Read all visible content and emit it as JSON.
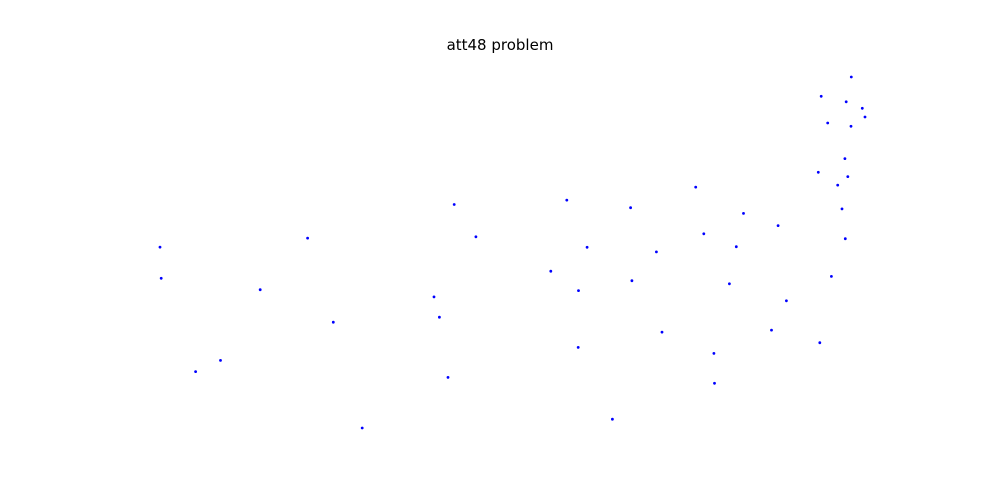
{
  "chart_data": {
    "type": "scatter",
    "title": "att48 problem",
    "xlabel": "",
    "ylabel": "",
    "axes_visible": false,
    "grid": false,
    "legend": "none",
    "marker_color": "#0000ff",
    "xlim": [
      0,
      8000
    ],
    "ylim": [
      0,
      5000
    ],
    "points": [
      {
        "x": 6734,
        "y": 1453
      },
      {
        "x": 2233,
        "y": 10
      },
      {
        "x": 5530,
        "y": 1424
      },
      {
        "x": 401,
        "y": 841
      },
      {
        "x": 3082,
        "y": 1644
      },
      {
        "x": 7608,
        "y": 4458
      },
      {
        "x": 7573,
        "y": 3716
      },
      {
        "x": 7265,
        "y": 1268
      },
      {
        "x": 6898,
        "y": 1885
      },
      {
        "x": 1112,
        "y": 2049
      },
      {
        "x": 5468,
        "y": 2606
      },
      {
        "x": 5989,
        "y": 2873
      },
      {
        "x": 4706,
        "y": 2674
      },
      {
        "x": 4612,
        "y": 2035
      },
      {
        "x": 6347,
        "y": 2683
      },
      {
        "x": 6107,
        "y": 669
      },
      {
        "x": 7611,
        "y": 5184
      },
      {
        "x": 7462,
        "y": 3590
      },
      {
        "x": 7732,
        "y": 4723
      },
      {
        "x": 5900,
        "y": 3561
      },
      {
        "x": 4483,
        "y": 3369
      },
      {
        "x": 6101,
        "y": 1110
      },
      {
        "x": 5199,
        "y": 2182
      },
      {
        "x": 1633,
        "y": 2809
      },
      {
        "x": 4307,
        "y": 2322
      },
      {
        "x": 675,
        "y": 1006
      },
      {
        "x": 7555,
        "y": 4819
      },
      {
        "x": 7541,
        "y": 3981
      },
      {
        "x": 3177,
        "y": 756
      },
      {
        "x": 7352,
        "y": 4506
      },
      {
        "x": 7545,
        "y": 2801
      },
      {
        "x": 3245,
        "y": 3305
      },
      {
        "x": 6426,
        "y": 3173
      },
      {
        "x": 4608,
        "y": 1198
      },
      {
        "x": 23,
        "y": 2216
      },
      {
        "x": 7248,
        "y": 3779
      },
      {
        "x": 7762,
        "y": 4595
      },
      {
        "x": 7392,
        "y": 2244
      },
      {
        "x": 3484,
        "y": 2829
      },
      {
        "x": 6271,
        "y": 2135
      },
      {
        "x": 4985,
        "y": 140
      },
      {
        "x": 1916,
        "y": 1569
      },
      {
        "x": 7280,
        "y": 4899
      },
      {
        "x": 7509,
        "y": 3239
      },
      {
        "x": 10,
        "y": 2676
      },
      {
        "x": 6807,
        "y": 2993
      },
      {
        "x": 5185,
        "y": 3258
      },
      {
        "x": 3023,
        "y": 1942
      }
    ]
  }
}
